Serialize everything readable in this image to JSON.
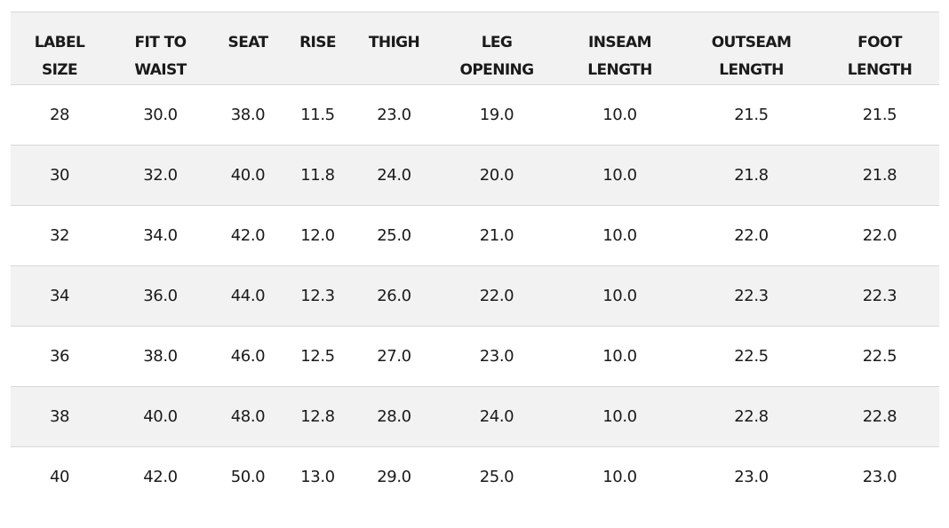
{
  "table": {
    "headers": [
      [
        "LABEL",
        "SIZE"
      ],
      [
        "FIT TO",
        "WAIST"
      ],
      [
        "SEAT"
      ],
      [
        "RISE"
      ],
      [
        "THIGH"
      ],
      [
        "LEG",
        "OPENING"
      ],
      [
        "INSEAM",
        "LENGTH"
      ],
      [
        "OUTSEAM",
        "LENGTH"
      ],
      [
        "FOOT",
        "LENGTH"
      ]
    ],
    "rows": [
      [
        "28",
        "30.0",
        "38.0",
        "11.5",
        "23.0",
        "19.0",
        "10.0",
        "21.5",
        "21.5"
      ],
      [
        "30",
        "32.0",
        "40.0",
        "11.8",
        "24.0",
        "20.0",
        "10.0",
        "21.8",
        "21.8"
      ],
      [
        "32",
        "34.0",
        "42.0",
        "12.0",
        "25.0",
        "21.0",
        "10.0",
        "22.0",
        "22.0"
      ],
      [
        "34",
        "36.0",
        "44.0",
        "12.3",
        "26.0",
        "22.0",
        "10.0",
        "22.3",
        "22.3"
      ],
      [
        "36",
        "38.0",
        "46.0",
        "12.5",
        "27.0",
        "23.0",
        "10.0",
        "22.5",
        "22.5"
      ],
      [
        "38",
        "40.0",
        "48.0",
        "12.8",
        "28.0",
        "24.0",
        "10.0",
        "22.8",
        "22.8"
      ],
      [
        "40",
        "42.0",
        "50.0",
        "13.0",
        "29.0",
        "25.0",
        "10.0",
        "23.0",
        "23.0"
      ]
    ]
  },
  "colors": {
    "header_bg": "#f2f2f2",
    "alt_row_bg": "#f2f2f2",
    "row_bg": "#ffffff",
    "border": "#d8d8d8",
    "text": "#1a1a1a"
  }
}
